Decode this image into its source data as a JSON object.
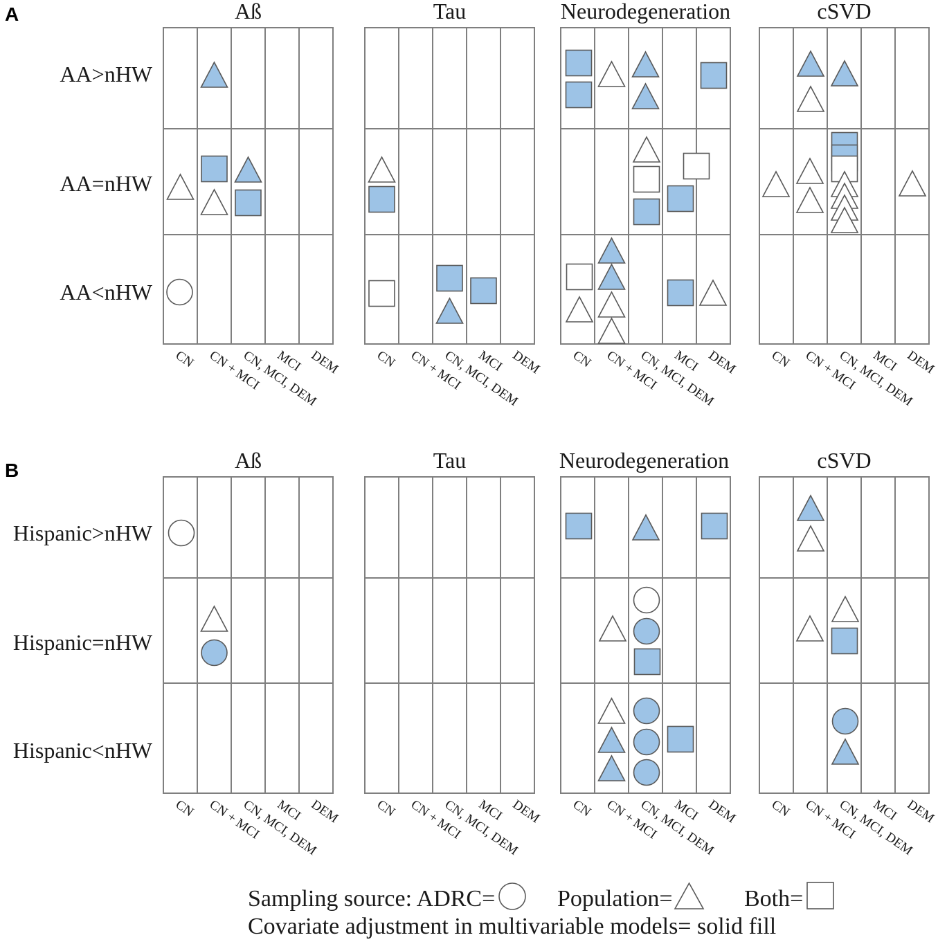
{
  "columns": [
    "CN",
    "CN + MCI",
    "CN, MCI, DEM",
    "MCI",
    "DEM"
  ],
  "colors": {
    "adjusted_fill": "#9dc3e6",
    "unadjusted_fill": "#ffffff",
    "symbol_stroke": "#595959",
    "grid_line": "#7f7f7f"
  },
  "panels": [
    {
      "label": "A",
      "rows": [
        "AA>nHW",
        "AA=nHW",
        "AA<nHW"
      ],
      "grids": [
        {
          "title": "Aß",
          "symbols": [
            {
              "row": 0,
              "col": 1,
              "shape": "triangle",
              "filled": true
            },
            {
              "row": 1,
              "col": 0,
              "shape": "triangle",
              "filled": false
            },
            {
              "row": 1,
              "col": 1,
              "shape": "square",
              "filled": true
            },
            {
              "row": 1,
              "col": 1,
              "shape": "triangle",
              "filled": false
            },
            {
              "row": 1,
              "col": 2,
              "shape": "triangle",
              "filled": true
            },
            {
              "row": 1,
              "col": 2,
              "shape": "square",
              "filled": true
            },
            {
              "row": 2,
              "col": 0,
              "shape": "circle",
              "filled": false
            }
          ]
        },
        {
          "title": "Tau",
          "symbols": [
            {
              "row": 1,
              "col": 0,
              "shape": "triangle",
              "filled": false
            },
            {
              "row": 1,
              "col": 0,
              "shape": "square",
              "filled": true
            },
            {
              "row": 2,
              "col": 0,
              "shape": "square",
              "filled": false
            },
            {
              "row": 2,
              "col": 2,
              "shape": "square",
              "filled": true
            },
            {
              "row": 2,
              "col": 2,
              "shape": "triangle",
              "filled": true
            },
            {
              "row": 2,
              "col": 3,
              "shape": "square",
              "filled": true
            }
          ]
        },
        {
          "title": "Neurodegeneration",
          "symbols": [
            {
              "row": 0,
              "col": 0,
              "shape": "square",
              "filled": true
            },
            {
              "row": 0,
              "col": 0,
              "shape": "square",
              "filled": true
            },
            {
              "row": 0,
              "col": 1,
              "shape": "triangle",
              "filled": false
            },
            {
              "row": 0,
              "col": 2,
              "shape": "triangle",
              "filled": true
            },
            {
              "row": 0,
              "col": 2,
              "shape": "triangle",
              "filled": true
            },
            {
              "row": 0,
              "col": 4,
              "shape": "square",
              "filled": true
            },
            {
              "row": 1,
              "col": 2,
              "shape": "triangle",
              "filled": false
            },
            {
              "row": 1,
              "col": 2,
              "shape": "square",
              "filled": false
            },
            {
              "row": 1,
              "col": 2,
              "shape": "square",
              "filled": true
            },
            {
              "row": 1,
              "col": 3,
              "shape": "square",
              "filled": false
            },
            {
              "row": 1,
              "col": 3,
              "shape": "square",
              "filled": true
            },
            {
              "row": 2,
              "col": 0,
              "shape": "square",
              "filled": false
            },
            {
              "row": 2,
              "col": 0,
              "shape": "triangle",
              "filled": false
            },
            {
              "row": 2,
              "col": 1,
              "shape": "triangle",
              "filled": true
            },
            {
              "row": 2,
              "col": 1,
              "shape": "triangle",
              "filled": true
            },
            {
              "row": 2,
              "col": 1,
              "shape": "triangle",
              "filled": false
            },
            {
              "row": 2,
              "col": 1,
              "shape": "triangle",
              "filled": false
            },
            {
              "row": 2,
              "col": 3,
              "shape": "square",
              "filled": true
            },
            {
              "row": 2,
              "col": 4,
              "shape": "triangle",
              "filled": false
            }
          ]
        },
        {
          "title": "cSVD",
          "symbols": [
            {
              "row": 0,
              "col": 1,
              "shape": "triangle",
              "filled": true
            },
            {
              "row": 0,
              "col": 1,
              "shape": "triangle",
              "filled": false
            },
            {
              "row": 0,
              "col": 2,
              "shape": "triangle",
              "filled": true
            },
            {
              "row": 1,
              "col": 0,
              "shape": "triangle",
              "filled": false
            },
            {
              "row": 1,
              "col": 1,
              "shape": "triangle",
              "filled": false
            },
            {
              "row": 1,
              "col": 1,
              "shape": "triangle",
              "filled": false
            },
            {
              "row": 1,
              "col": 2,
              "shape": "square",
              "filled": true
            },
            {
              "row": 1,
              "col": 2,
              "shape": "square",
              "filled": true
            },
            {
              "row": 1,
              "col": 2,
              "shape": "square",
              "filled": false
            },
            {
              "row": 1,
              "col": 2,
              "shape": "triangle",
              "filled": false
            },
            {
              "row": 1,
              "col": 2,
              "shape": "triangle",
              "filled": false
            },
            {
              "row": 1,
              "col": 2,
              "shape": "triangle",
              "filled": false
            },
            {
              "row": 1,
              "col": 2,
              "shape": "triangle",
              "filled": false
            },
            {
              "row": 1,
              "col": 4,
              "shape": "triangle",
              "filled": false
            }
          ]
        }
      ]
    },
    {
      "label": "B",
      "rows": [
        "Hispanic>nHW",
        "Hispanic=nHW",
        "Hispanic<nHW"
      ],
      "grids": [
        {
          "title": "Aß",
          "symbols": [
            {
              "row": 0,
              "col": 0,
              "shape": "circle",
              "filled": false
            },
            {
              "row": 1,
              "col": 1,
              "shape": "triangle",
              "filled": false
            },
            {
              "row": 1,
              "col": 1,
              "shape": "circle",
              "filled": true
            }
          ]
        },
        {
          "title": "Tau",
          "symbols": []
        },
        {
          "title": "Neurodegeneration",
          "symbols": [
            {
              "row": 0,
              "col": 0,
              "shape": "square",
              "filled": true
            },
            {
              "row": 0,
              "col": 2,
              "shape": "triangle",
              "filled": true
            },
            {
              "row": 0,
              "col": 4,
              "shape": "square",
              "filled": true
            },
            {
              "row": 1,
              "col": 1,
              "shape": "triangle",
              "filled": false
            },
            {
              "row": 1,
              "col": 2,
              "shape": "circle",
              "filled": false
            },
            {
              "row": 1,
              "col": 2,
              "shape": "circle",
              "filled": true
            },
            {
              "row": 1,
              "col": 2,
              "shape": "square",
              "filled": true
            },
            {
              "row": 2,
              "col": 1,
              "shape": "triangle",
              "filled": false
            },
            {
              "row": 2,
              "col": 1,
              "shape": "triangle",
              "filled": true
            },
            {
              "row": 2,
              "col": 1,
              "shape": "triangle",
              "filled": true
            },
            {
              "row": 2,
              "col": 2,
              "shape": "circle",
              "filled": true
            },
            {
              "row": 2,
              "col": 2,
              "shape": "circle",
              "filled": true
            },
            {
              "row": 2,
              "col": 2,
              "shape": "circle",
              "filled": true
            },
            {
              "row": 2,
              "col": 3,
              "shape": "square",
              "filled": true
            }
          ]
        },
        {
          "title": "cSVD",
          "symbols": [
            {
              "row": 0,
              "col": 1,
              "shape": "triangle",
              "filled": true
            },
            {
              "row": 0,
              "col": 1,
              "shape": "triangle",
              "filled": false
            },
            {
              "row": 1,
              "col": 1,
              "shape": "triangle",
              "filled": false
            },
            {
              "row": 1,
              "col": 2,
              "shape": "triangle",
              "filled": false
            },
            {
              "row": 1,
              "col": 2,
              "shape": "square",
              "filled": true
            },
            {
              "row": 2,
              "col": 2,
              "shape": "circle",
              "filled": true
            },
            {
              "row": 2,
              "col": 2,
              "shape": "triangle",
              "filled": true
            }
          ]
        }
      ]
    }
  ],
  "legend": {
    "sampling_label": "Sampling source: ADRC=",
    "population_label": "Population=",
    "both_label": "Both=",
    "covariate_label": "Covariate adjustment in multivariable models= solid fill"
  }
}
